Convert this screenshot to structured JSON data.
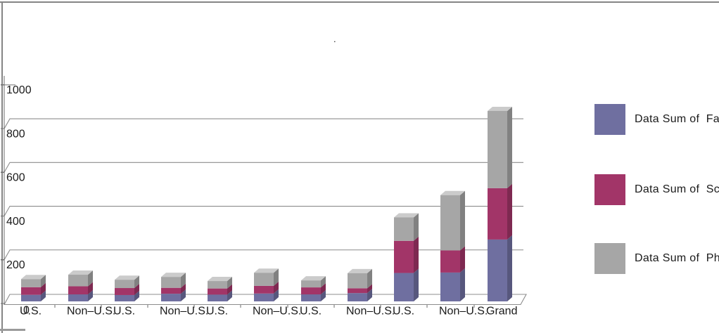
{
  "frame": {
    "border_color": "#858585"
  },
  "chart_data": {
    "type": "bar",
    "subtype": "stacked-3d-column",
    "title": ".",
    "categories": [
      "U.S.",
      "Non–U.S.",
      "U.S.",
      "Non–U.S.",
      "U.S.",
      "Non–U.S.",
      "U.S.",
      "Non–U.S.",
      "U.S.",
      "Non–U.S.",
      "Grand"
    ],
    "series": [
      {
        "name": "Data Sum of  Fa",
        "color": "#6F6FA0",
        "values": [
          30,
          32,
          29,
          35,
          31,
          36,
          32,
          38,
          130,
          132,
          283
        ]
      },
      {
        "name": "Data Sum of  Sc",
        "color": "#A23568",
        "values": [
          35,
          37,
          32,
          27,
          28,
          35,
          32,
          22,
          147,
          101,
          235
        ]
      },
      {
        "name": "Data Sum of  Ph",
        "color": "#A6A6A6",
        "values": [
          37,
          53,
          38,
          50,
          34,
          60,
          32,
          69,
          107,
          253,
          353
        ]
      }
    ],
    "ylim": [
      0,
      1000
    ],
    "yticks": [
      0,
      200,
      400,
      600,
      800,
      1000
    ],
    "ytick_labels": [
      "0",
      "200",
      "400",
      "600",
      "800",
      "1000"
    ],
    "grid": true,
    "legend_position": "right",
    "axis_color": "#6e6e6e",
    "gridline_color": "#8c8c8c",
    "text_color": "#1a1a1a"
  }
}
